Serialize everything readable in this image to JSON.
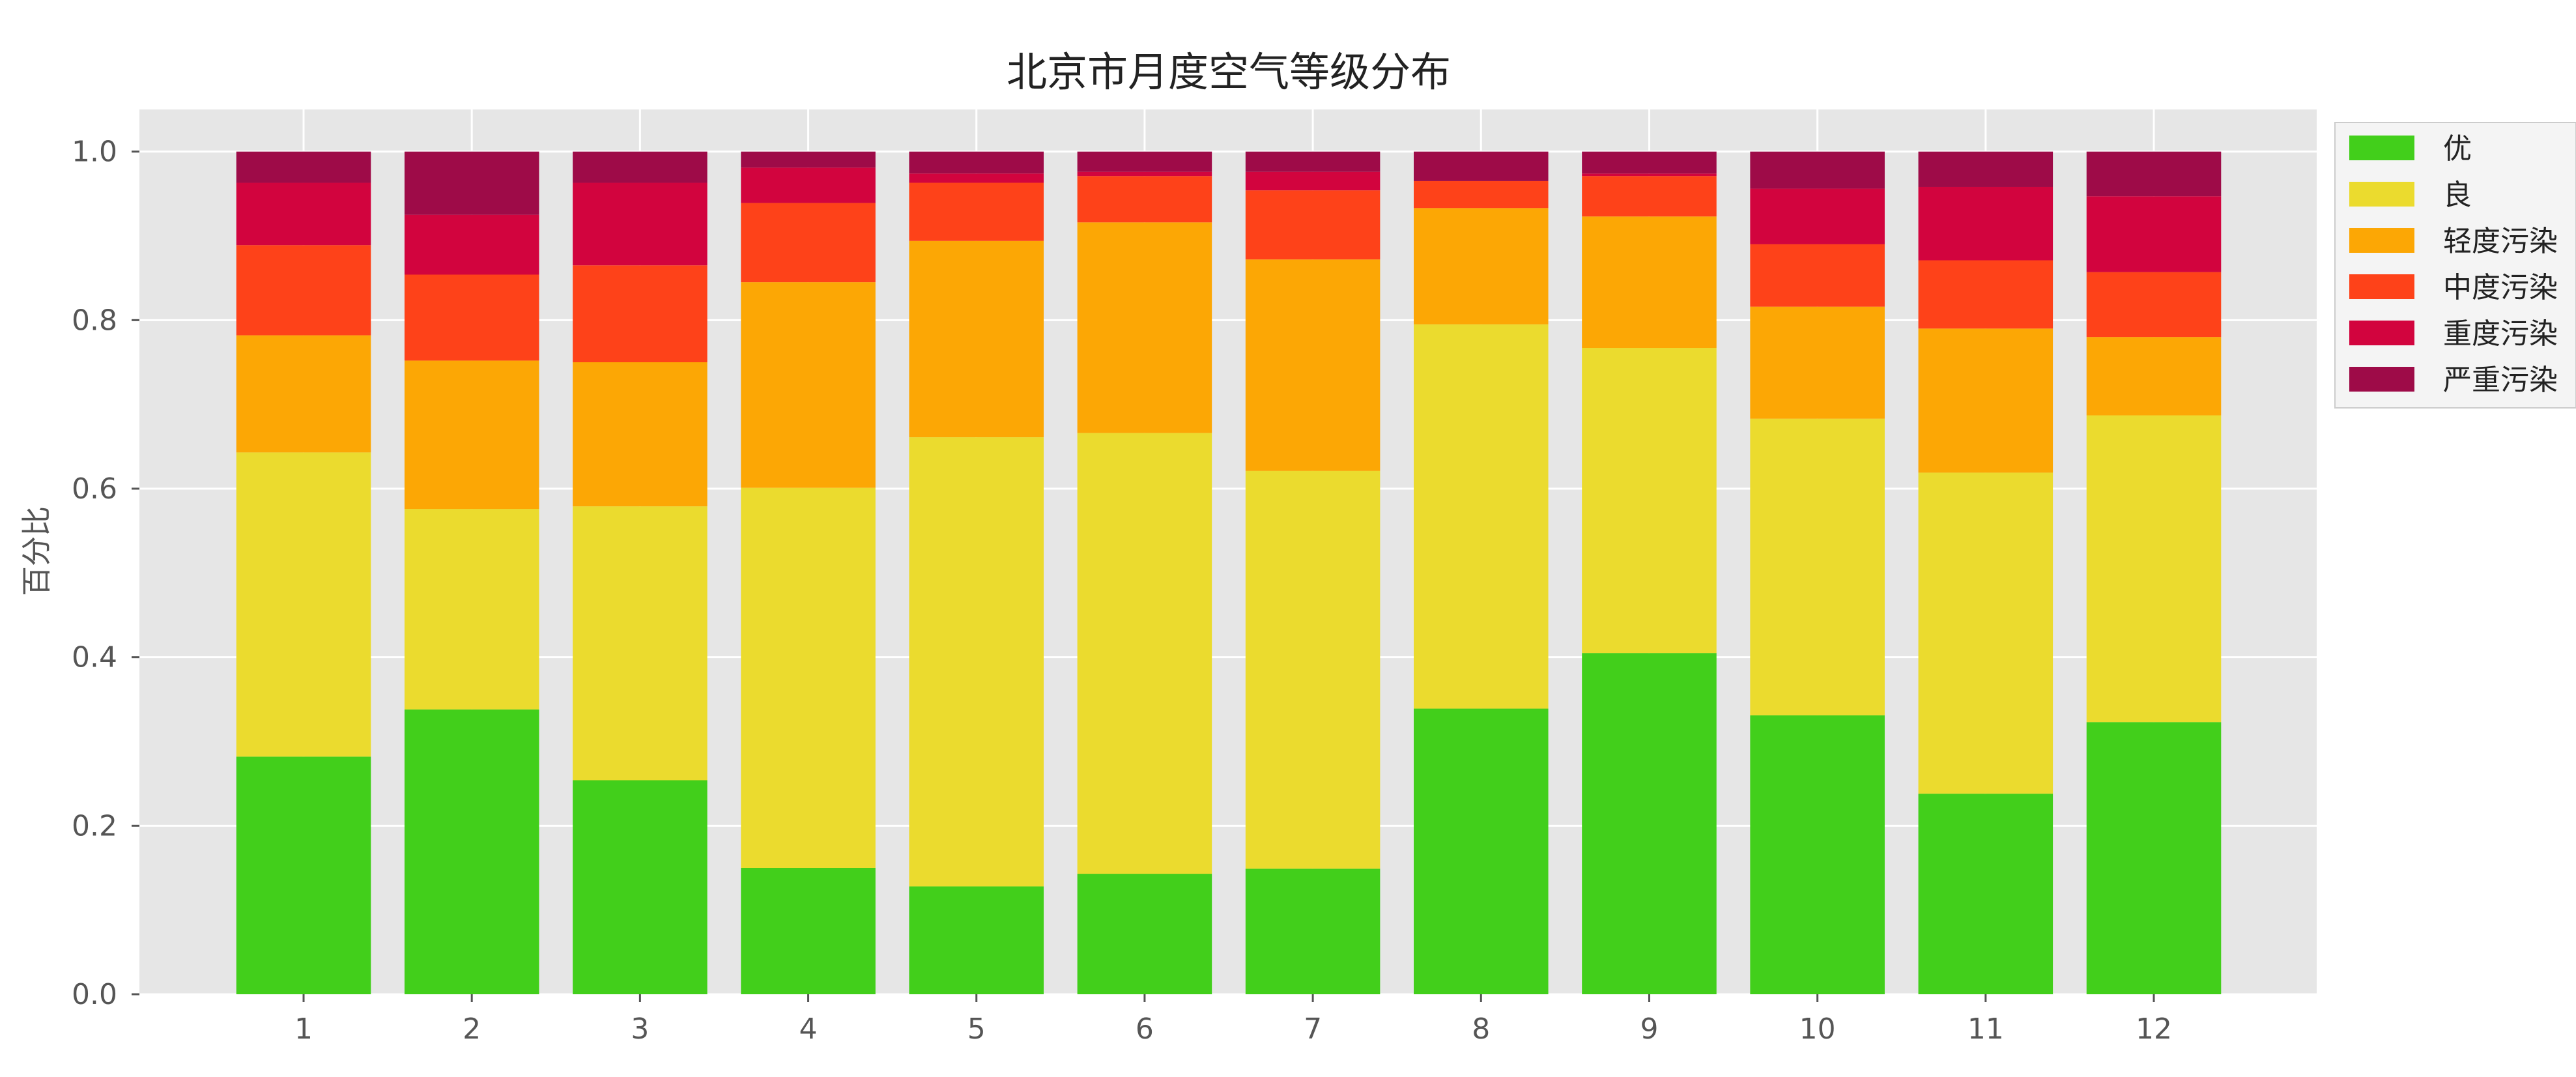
{
  "chart_data": {
    "type": "bar",
    "stacked": true,
    "title": "北京市月度空气等级分布",
    "xlabel": "",
    "ylabel": "百分比",
    "ylim": [
      0,
      1.05
    ],
    "yticks": [
      "0.0",
      "0.2",
      "0.4",
      "0.6",
      "0.8",
      "1.0"
    ],
    "grid": true,
    "legend_position": "right",
    "categories": [
      "1",
      "2",
      "3",
      "4",
      "5",
      "6",
      "7",
      "8",
      "9",
      "10",
      "11",
      "12"
    ],
    "series": [
      {
        "name": "优",
        "color": "#42cf1b",
        "values": [
          0.282,
          0.338,
          0.254,
          0.15,
          0.128,
          0.143,
          0.149,
          0.339,
          0.405,
          0.331,
          0.238,
          0.323
        ]
      },
      {
        "name": "良",
        "color": "#ebdb2e",
        "values": [
          0.361,
          0.238,
          0.325,
          0.451,
          0.533,
          0.523,
          0.472,
          0.456,
          0.362,
          0.352,
          0.381,
          0.364
        ]
      },
      {
        "name": "轻度污染",
        "color": "#fca705",
        "values": [
          0.139,
          0.176,
          0.171,
          0.244,
          0.233,
          0.25,
          0.251,
          0.138,
          0.156,
          0.133,
          0.171,
          0.093
        ]
      },
      {
        "name": "中度污染",
        "color": "#fe4219",
        "values": [
          0.107,
          0.102,
          0.115,
          0.094,
          0.069,
          0.055,
          0.082,
          0.032,
          0.048,
          0.074,
          0.081,
          0.077
        ]
      },
      {
        "name": "重度污染",
        "color": "#d2043e",
        "values": [
          0.074,
          0.071,
          0.098,
          0.042,
          0.011,
          0.005,
          0.022,
          0.0,
          0.003,
          0.066,
          0.087,
          0.09
        ]
      },
      {
        "name": "严重污染",
        "color": "#9e0b48",
        "values": [
          0.037,
          0.075,
          0.037,
          0.019,
          0.026,
          0.024,
          0.024,
          0.035,
          0.026,
          0.044,
          0.042,
          0.053
        ]
      }
    ]
  }
}
